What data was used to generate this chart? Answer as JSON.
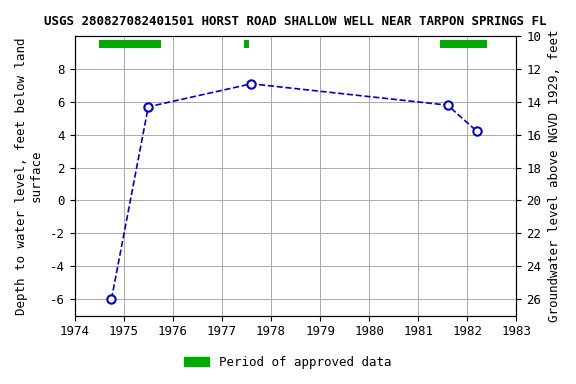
{
  "title": "USGS 280827082401501 HORST ROAD SHALLOW WELL NEAR TARPON SPRINGS FL",
  "xlabel": "",
  "ylabel_left": "Depth to water level, feet below land\nsurface",
  "ylabel_right": "Groundwater level above NGVD 1929, feet",
  "x_data": [
    1974.75,
    1975.5,
    1977.6,
    1981.6,
    1982.2
  ],
  "y_data": [
    -6.0,
    5.7,
    7.1,
    5.8,
    4.2
  ],
  "xlim": [
    1974,
    1983
  ],
  "ylim_left": [
    -7,
    10
  ],
  "ylim_right": [
    10,
    27
  ],
  "yticks_left": [
    -6,
    -4,
    -2,
    0,
    2,
    4,
    6,
    8
  ],
  "yticks_right": [
    10,
    12,
    14,
    16,
    18,
    20,
    22,
    24,
    26
  ],
  "xticks": [
    1974,
    1975,
    1976,
    1977,
    1978,
    1979,
    1980,
    1981,
    1982,
    1983
  ],
  "line_color": "#0000cc",
  "marker_color": "#0000cc",
  "background_color": "#ffffff",
  "grid_color": "#aaaaaa",
  "approved_segments": [
    {
      "xstart": 1974.5,
      "xend": 1975.75
    },
    {
      "xstart": 1977.45,
      "xend": 1977.55
    },
    {
      "xstart": 1981.45,
      "xend": 1982.4
    }
  ],
  "approved_color": "#00aa00",
  "approved_bar_y": 9.5,
  "approved_bar_height": 0.5,
  "legend_label": "Period of approved data",
  "title_fontsize": 9,
  "axis_fontsize": 9,
  "tick_fontsize": 9
}
